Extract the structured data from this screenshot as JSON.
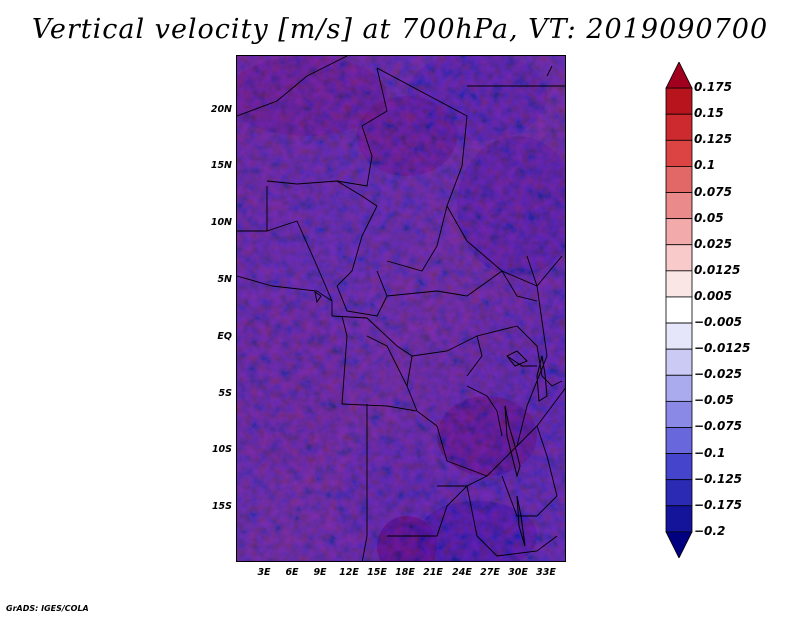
{
  "title": "Vertical velocity [m/s] at 700hPa, VT: 2019090700",
  "credit": "GrADS: IGES/COLA",
  "axes": {
    "lat_labels": [
      "20N",
      "15N",
      "10N",
      "5N",
      "EQ",
      "5S",
      "10S",
      "15S"
    ],
    "lon_labels": [
      "3E",
      "6E",
      "9E",
      "12E",
      "15E",
      "18E",
      "21E",
      "24E",
      "27E",
      "30E",
      "33E"
    ]
  },
  "colorbar": {
    "labels": [
      "0.175",
      "0.15",
      "0.125",
      "0.1",
      "0.075",
      "0.05",
      "0.025",
      "0.0125",
      "0.005",
      "−0.005",
      "−0.0125",
      "−0.025",
      "−0.05",
      "−0.075",
      "−0.1",
      "−0.125",
      "−0.175",
      "−0.2"
    ],
    "colors": [
      "#a0001e",
      "#b8141e",
      "#cc2a2e",
      "#dc4444",
      "#e26868",
      "#ea8a8a",
      "#f2aaaa",
      "#f8caca",
      "#fbe6e6",
      "#ffffff",
      "#e6e6fb",
      "#cacaf4",
      "#aaaaef",
      "#8a8ae6",
      "#6868dc",
      "#4444cc",
      "#2a2ab4",
      "#14149a",
      "#000080"
    ]
  }
}
